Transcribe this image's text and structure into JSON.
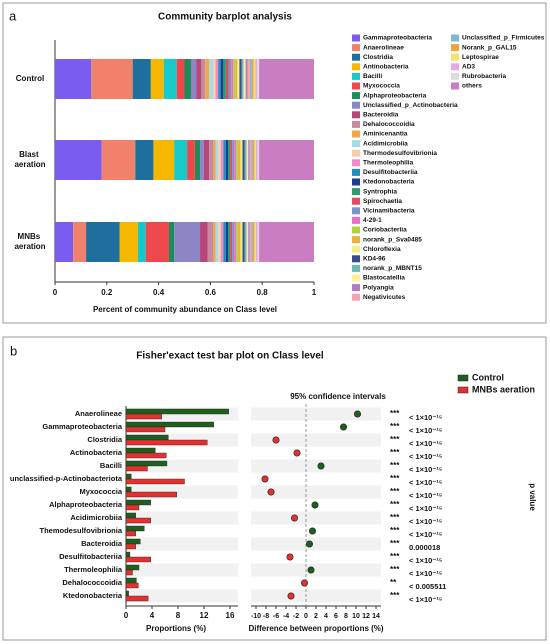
{
  "chart_data": [
    {
      "type": "stacked_bar",
      "panel_label": "a",
      "title": "Community barplot analysis",
      "xlabel": "Percent of community abundance on Class level",
      "categories": [
        "Control",
        "Blast aeration",
        "MNBs aeration"
      ],
      "xlim": [
        0,
        1
      ],
      "xticks": [
        0,
        0.2,
        0.4,
        0.6,
        0.8,
        1
      ],
      "series": [
        {
          "name": "Gammaproteobacteria",
          "color": "#7b5cf0",
          "values": [
            0.14,
            0.18,
            0.07
          ]
        },
        {
          "name": "Anaerolineae",
          "color": "#f0826b",
          "values": [
            0.16,
            0.13,
            0.05
          ]
        },
        {
          "name": "Clostridia",
          "color": "#1f6f9e",
          "values": [
            0.07,
            0.07,
            0.13
          ]
        },
        {
          "name": "Antinobacteria",
          "color": "#f5b700",
          "values": [
            0.05,
            0.08,
            0.07
          ]
        },
        {
          "name": "Bacilli",
          "color": "#17c9c9",
          "values": [
            0.05,
            0.05,
            0.03
          ]
        },
        {
          "name": "Myxococcia",
          "color": "#f0474d",
          "values": [
            0.03,
            0.03,
            0.09
          ]
        },
        {
          "name": "Alphaproteobacteria",
          "color": "#1e8c5a",
          "values": [
            0.025,
            0.02,
            0.02
          ]
        },
        {
          "name": "Unclassified_p_Actinobacteria",
          "color": "#8a87c4",
          "values": [
            0.02,
            0.015,
            0.1
          ]
        },
        {
          "name": "Bacteroidia",
          "color": "#b6477a",
          "values": [
            0.02,
            0.02,
            0.03
          ]
        },
        {
          "name": "Dehalococcoidia",
          "color": "#c78aa3",
          "values": [
            0.015,
            0.015,
            0.02
          ]
        },
        {
          "name": "Aminicenantia",
          "color": "#f4a64a",
          "values": [
            0.015,
            0.01,
            0.01
          ]
        },
        {
          "name": "Acidimicrobiia",
          "color": "#a8dbe8",
          "values": [
            0.015,
            0.01,
            0.01
          ]
        },
        {
          "name": "Thermodesulfovibrionia",
          "color": "#f7d0a8",
          "values": [
            0.01,
            0.01,
            0.01
          ]
        },
        {
          "name": "Thermoleophilia",
          "color": "#f28cc8",
          "values": [
            0.01,
            0.01,
            0.01
          ]
        },
        {
          "name": "Desulfitobacteriia",
          "color": "#1f8fbf",
          "values": [
            0.01,
            0.01,
            0.01
          ]
        },
        {
          "name": "Ktedonobacteria",
          "color": "#1d3d8f",
          "values": [
            0.01,
            0.008,
            0.008
          ]
        },
        {
          "name": "Syntrophia",
          "color": "#2d9c6f",
          "values": [
            0.01,
            0.008,
            0.008
          ]
        },
        {
          "name": "Spirochaetia",
          "color": "#e04b63",
          "values": [
            0.01,
            0.008,
            0.008
          ]
        },
        {
          "name": "Vicinamibacteria",
          "color": "#7c93c8",
          "values": [
            0.01,
            0.008,
            0.008
          ]
        },
        {
          "name": "4-29-1",
          "color": "#e872c8",
          "values": [
            0.008,
            0.008,
            0.008
          ]
        },
        {
          "name": "Coriobacteriia",
          "color": "#b2d33a",
          "values": [
            0.008,
            0.008,
            0.008
          ]
        },
        {
          "name": "norank_p_Sva0485",
          "color": "#e9b23c",
          "values": [
            0.008,
            0.008,
            0.008
          ]
        },
        {
          "name": "Chloroflexia",
          "color": "#f3ef8f",
          "values": [
            0.008,
            0.008,
            0.008
          ]
        },
        {
          "name": "KD4-96",
          "color": "#3c4a8f",
          "values": [
            0.008,
            0.008,
            0.008
          ]
        },
        {
          "name": "norank_p_MBNT15",
          "color": "#6fb7b4",
          "values": [
            0.008,
            0.008,
            0.008
          ]
        },
        {
          "name": "Blastocatellia",
          "color": "#fff39a",
          "values": [
            0.008,
            0.006,
            0.006
          ]
        },
        {
          "name": "Polyangia",
          "color": "#b57ac2",
          "values": [
            0.008,
            0.006,
            0.006
          ]
        },
        {
          "name": "Negativicutes",
          "color": "#f4a4ae",
          "values": [
            0.008,
            0.006,
            0.006
          ]
        },
        {
          "name": "Unclassified_p_Firmicutes",
          "color": "#7fb7d4",
          "values": [
            0.008,
            0.006,
            0.006
          ]
        },
        {
          "name": "Norank_p_GAL15",
          "color": "#f2a23c",
          "values": [
            0.007,
            0.006,
            0.006
          ]
        },
        {
          "name": "Leptospirae",
          "color": "#f5e26a",
          "values": [
            0.007,
            0.006,
            0.006
          ]
        },
        {
          "name": "AD3",
          "color": "#e7a9e0",
          "values": [
            0.007,
            0.006,
            0.006
          ]
        },
        {
          "name": "Rubrobacteria",
          "color": "#dcdcdc",
          "values": [
            0.007,
            0.006,
            0.006
          ]
        },
        {
          "name": "others",
          "color": "#c97ec1",
          "values": [
            0.212,
            0.212,
            0.212
          ]
        }
      ]
    },
    {
      "type": "fisher_bar",
      "panel_label": "b",
      "title": "Fisher'exact test bar plot on Class level",
      "categories": [
        "Anaerolineae",
        "Gammaproteobacteria",
        "Clostridia",
        "Actinobacteria",
        "Bacilli",
        "unclassified-p-Actinobacteriota",
        "Myxococcia",
        "Alphaproteobacteria",
        "Acidimicrobiia",
        "Themodesulfovibrionia",
        "Bacteroidia",
        "Desulfitobacteriia",
        "Thermoleophilia",
        "Dehalococcoidia",
        "Ktedonobacteria"
      ],
      "series": [
        {
          "name": "Control",
          "color": "#1e5e1e",
          "values": [
            15.8,
            13.5,
            6.5,
            4.5,
            6.3,
            0.8,
            0.8,
            3.8,
            1.5,
            2.8,
            2.2,
            0.6,
            2.0,
            1.6,
            0.4
          ]
        },
        {
          "name": "MNBs aeration",
          "color": "#e53030",
          "values": [
            5.5,
            6.0,
            12.5,
            6.2,
            3.3,
            9.0,
            7.8,
            2.0,
            3.8,
            1.5,
            1.5,
            3.8,
            1.0,
            1.9,
            3.4
          ]
        }
      ],
      "xlim": [
        0,
        16
      ],
      "xticks": [
        0,
        4,
        8,
        12,
        16
      ],
      "xlabel": "Proportions (%)",
      "ci_title": "95% confidence intervals",
      "differences": [
        10.3,
        7.5,
        -6.0,
        -1.8,
        3.0,
        -8.2,
        -7.0,
        1.8,
        -2.3,
        1.3,
        0.7,
        -3.2,
        1.0,
        -0.3,
        -3.0
      ],
      "errors": [
        0.5,
        0.5,
        0.5,
        0.4,
        0.4,
        0.4,
        0.4,
        0.3,
        0.3,
        0.3,
        0.3,
        0.3,
        0.3,
        0.3,
        0.3
      ],
      "diff_xlim": [
        -11,
        15
      ],
      "diff_xticks": [
        -10,
        -8,
        -6,
        -4,
        -2,
        0,
        2,
        4,
        6,
        8,
        10,
        12,
        14
      ],
      "diff_xlabel": "Difference between proportions (%)",
      "significance": [
        "***",
        "***",
        "***",
        "***",
        "***",
        "***",
        "***",
        "***",
        "***",
        "***",
        "***",
        "***",
        "***",
        "**",
        "***"
      ],
      "p_labels": [
        "< 1×10⁻¹⁵",
        "< 1×10⁻¹⁵",
        "< 1×10⁻¹⁵",
        "< 1×10⁻¹⁵",
        "< 1×10⁻¹⁵",
        "< 1×10⁻¹⁵",
        "< 1×10⁻¹⁵",
        "< 1×10⁻¹⁵",
        "< 1×10⁻¹⁵",
        "< 1×10⁻¹⁵",
        "0.000018",
        "< 1×10⁻¹⁵",
        "< 1×10⁻¹⁵",
        "< 0.005511",
        "< 1×10⁻¹⁵"
      ],
      "p_axis_label": "p value"
    }
  ]
}
